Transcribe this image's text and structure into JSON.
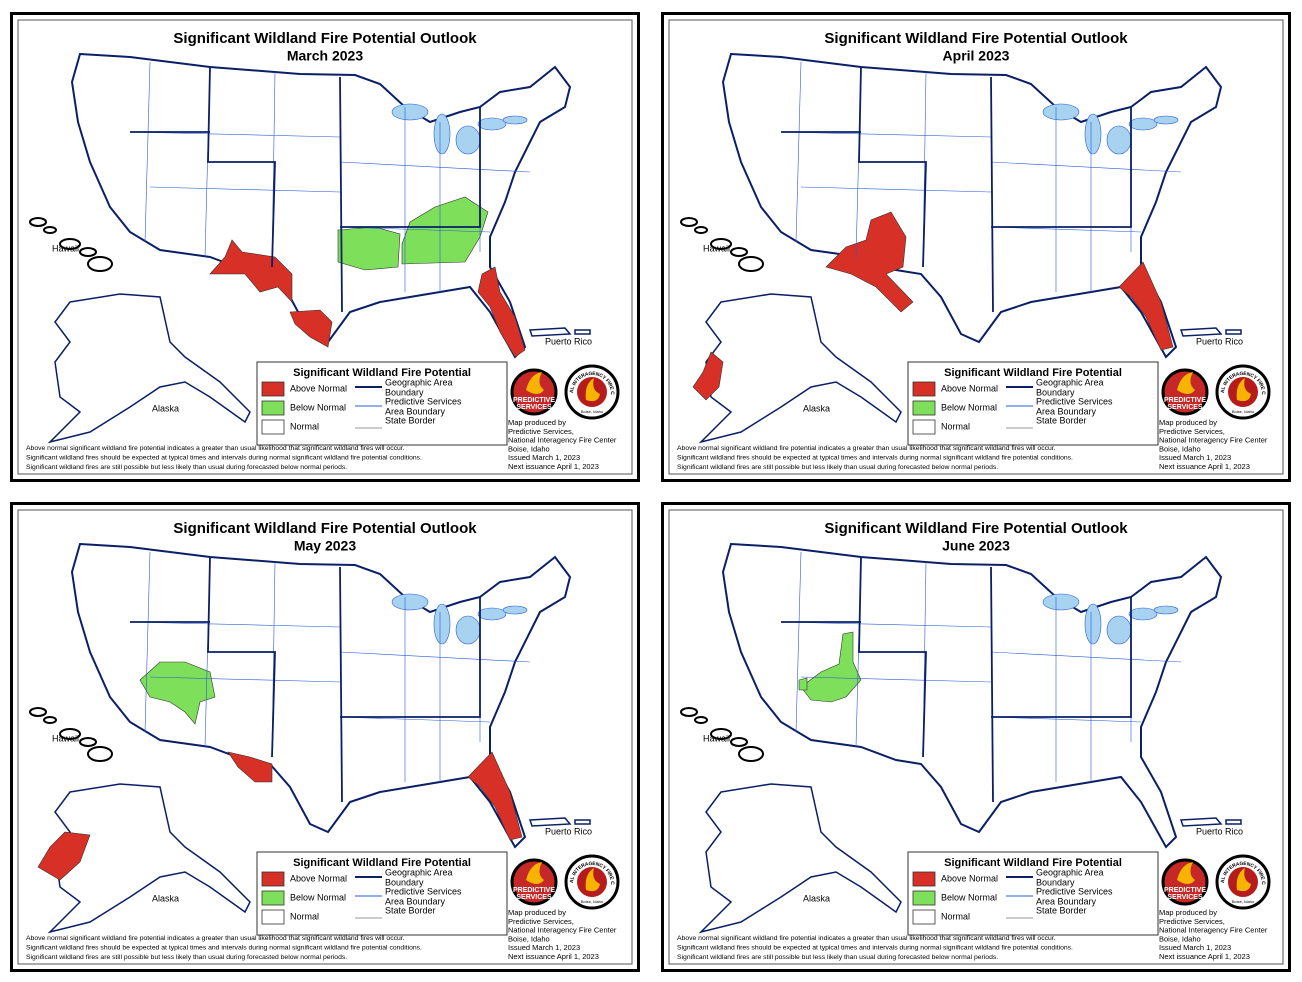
{
  "title": "Significant Wildland Fire Potential Outlook",
  "panels": [
    {
      "subtitle": "March 2023"
    },
    {
      "subtitle": "April 2023"
    },
    {
      "subtitle": "May 2023"
    },
    {
      "subtitle": "June 2023"
    }
  ],
  "place_labels": {
    "hawaii": "Hawaii",
    "alaska": "Alaska",
    "puerto_rico": "Puerto Rico"
  },
  "legend": {
    "title": "Significant Wildland Fire Potential",
    "fills": [
      "Above Normal",
      "Below Normal",
      "Normal"
    ],
    "lines": [
      [
        "Geographic Area",
        "Boundary"
      ],
      [
        "Predictive Services",
        "Area Boundary"
      ],
      [
        "State Border"
      ]
    ]
  },
  "logos": {
    "predictive": [
      "PREDICTIVE",
      "SERVICES"
    ],
    "nifc": "NATIONAL INTERAGENCY FIRE CENTER",
    "nifc_city": "Boise, Idaho"
  },
  "credit": [
    "Map produced by",
    "Predictive Services,",
    "National Interagency Fire Center",
    "Boise, Idaho",
    "Issued March 1, 2023",
    "Next issuance April 1, 2023"
  ],
  "notes": [
    "Above normal significant wildland fire potential indicates a greater than usual likelihood that significant wildland fires will occur.",
    "Significant wildland fires should be expected at typical times and intervals during normal significant wildland fire potential conditions.",
    "Significant wildland fires are still possible but less likely than usual during forecasted below normal periods."
  ]
}
